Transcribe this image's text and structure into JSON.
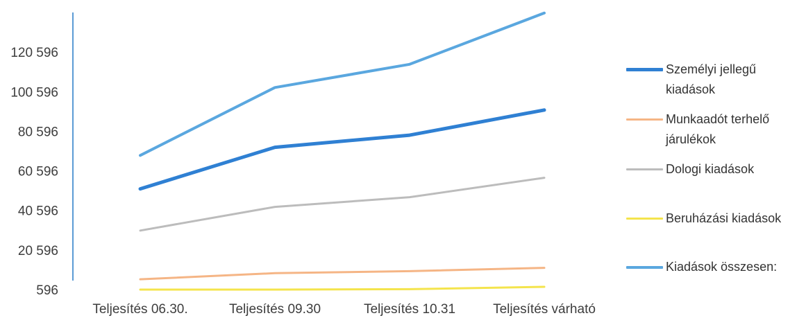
{
  "chart_data": {
    "type": "line",
    "categories": [
      "Teljesítés 06.30.",
      "Teljesítés 09.30",
      "Teljesítés 10.31",
      "Teljesítés várható"
    ],
    "ylim": [
      596,
      140596
    ],
    "yticks": [
      596,
      20596,
      40596,
      60596,
      80596,
      100596,
      120596
    ],
    "ytick_labels": [
      "596",
      "20 596",
      "40 596",
      "60 596",
      "80 596",
      "100 596",
      "120 596"
    ],
    "grid": false,
    "legend_position": "right",
    "axis_color": "#5b9bd5",
    "series": [
      {
        "name": "Személyi jellegű kiadások",
        "color": "#2f80d3",
        "values": [
          51500,
          72500,
          78600,
          91300
        ]
      },
      {
        "name": "Munkaadót terhelő járulékok",
        "color": "#f5b585",
        "values": [
          5800,
          8900,
          9900,
          11600
        ]
      },
      {
        "name": "Dologi kiadások",
        "color": "#bcbcbc",
        "values": [
          30400,
          42400,
          47300,
          57100
        ]
      },
      {
        "name": "Beruházási kiadások",
        "color": "#f4e44c",
        "values": [
          600,
          600,
          800,
          2000
        ]
      },
      {
        "name": "Kiadások összesen:",
        "color": "#5aa7df",
        "values": [
          68400,
          102700,
          114400,
          140300
        ]
      }
    ]
  }
}
